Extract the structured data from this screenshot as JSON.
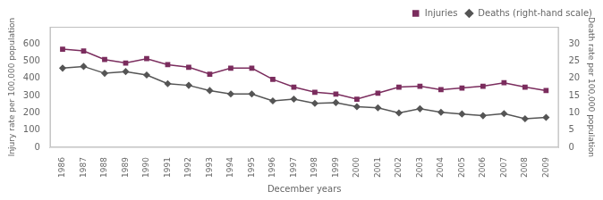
{
  "chart_data": {
    "type": "line",
    "x": [
      1986,
      1987,
      1988,
      1989,
      1990,
      1991,
      1992,
      1993,
      1994,
      1995,
      1996,
      1997,
      1998,
      1999,
      2000,
      2001,
      2002,
      2003,
      2004,
      2005,
      2006,
      2007,
      2008,
      2009
    ],
    "xlim": [
      1985.4,
      2009.6
    ],
    "xticks": [
      1986,
      1987,
      1988,
      1989,
      1990,
      1991,
      1992,
      1993,
      1994,
      1995,
      1996,
      1997,
      1998,
      1999,
      2000,
      2001,
      2002,
      2003,
      2004,
      2005,
      2006,
      2007,
      2008,
      2009
    ],
    "xlabel": "December years",
    "ylabel": "Injury rate per 100,000 population",
    "y2label": "Death rate per 100,000 population",
    "ylim": [
      0,
      700
    ],
    "yticks": [
      0,
      100,
      200,
      300,
      400,
      500,
      600
    ],
    "y2lim": [
      0,
      35
    ],
    "y2ticks": [
      0,
      5,
      10,
      15,
      20,
      25,
      30
    ],
    "grid": false,
    "legend": "upper right",
    "series": [
      {
        "name": "Injuries",
        "color": "#7b2d5e",
        "marker": "square",
        "values": [
          570,
          560,
          510,
          490,
          515,
          480,
          465,
          425,
          460,
          460,
          395,
          350,
          320,
          310,
          280,
          315,
          350,
          355,
          335,
          345,
          355,
          375,
          350,
          330
        ]
      },
      {
        "name": "Deaths (right-hand scale)",
        "color": "#555555",
        "marker": "diamond",
        "axis": "y2",
        "values": [
          23.0,
          23.5,
          21.5,
          22.0,
          21.0,
          18.5,
          18.0,
          16.5,
          15.5,
          15.5,
          13.5,
          14.0,
          12.8,
          13.0,
          11.8,
          11.5,
          10.0,
          11.2,
          10.2,
          9.7,
          9.2,
          9.8,
          8.3,
          8.7
        ]
      }
    ]
  }
}
